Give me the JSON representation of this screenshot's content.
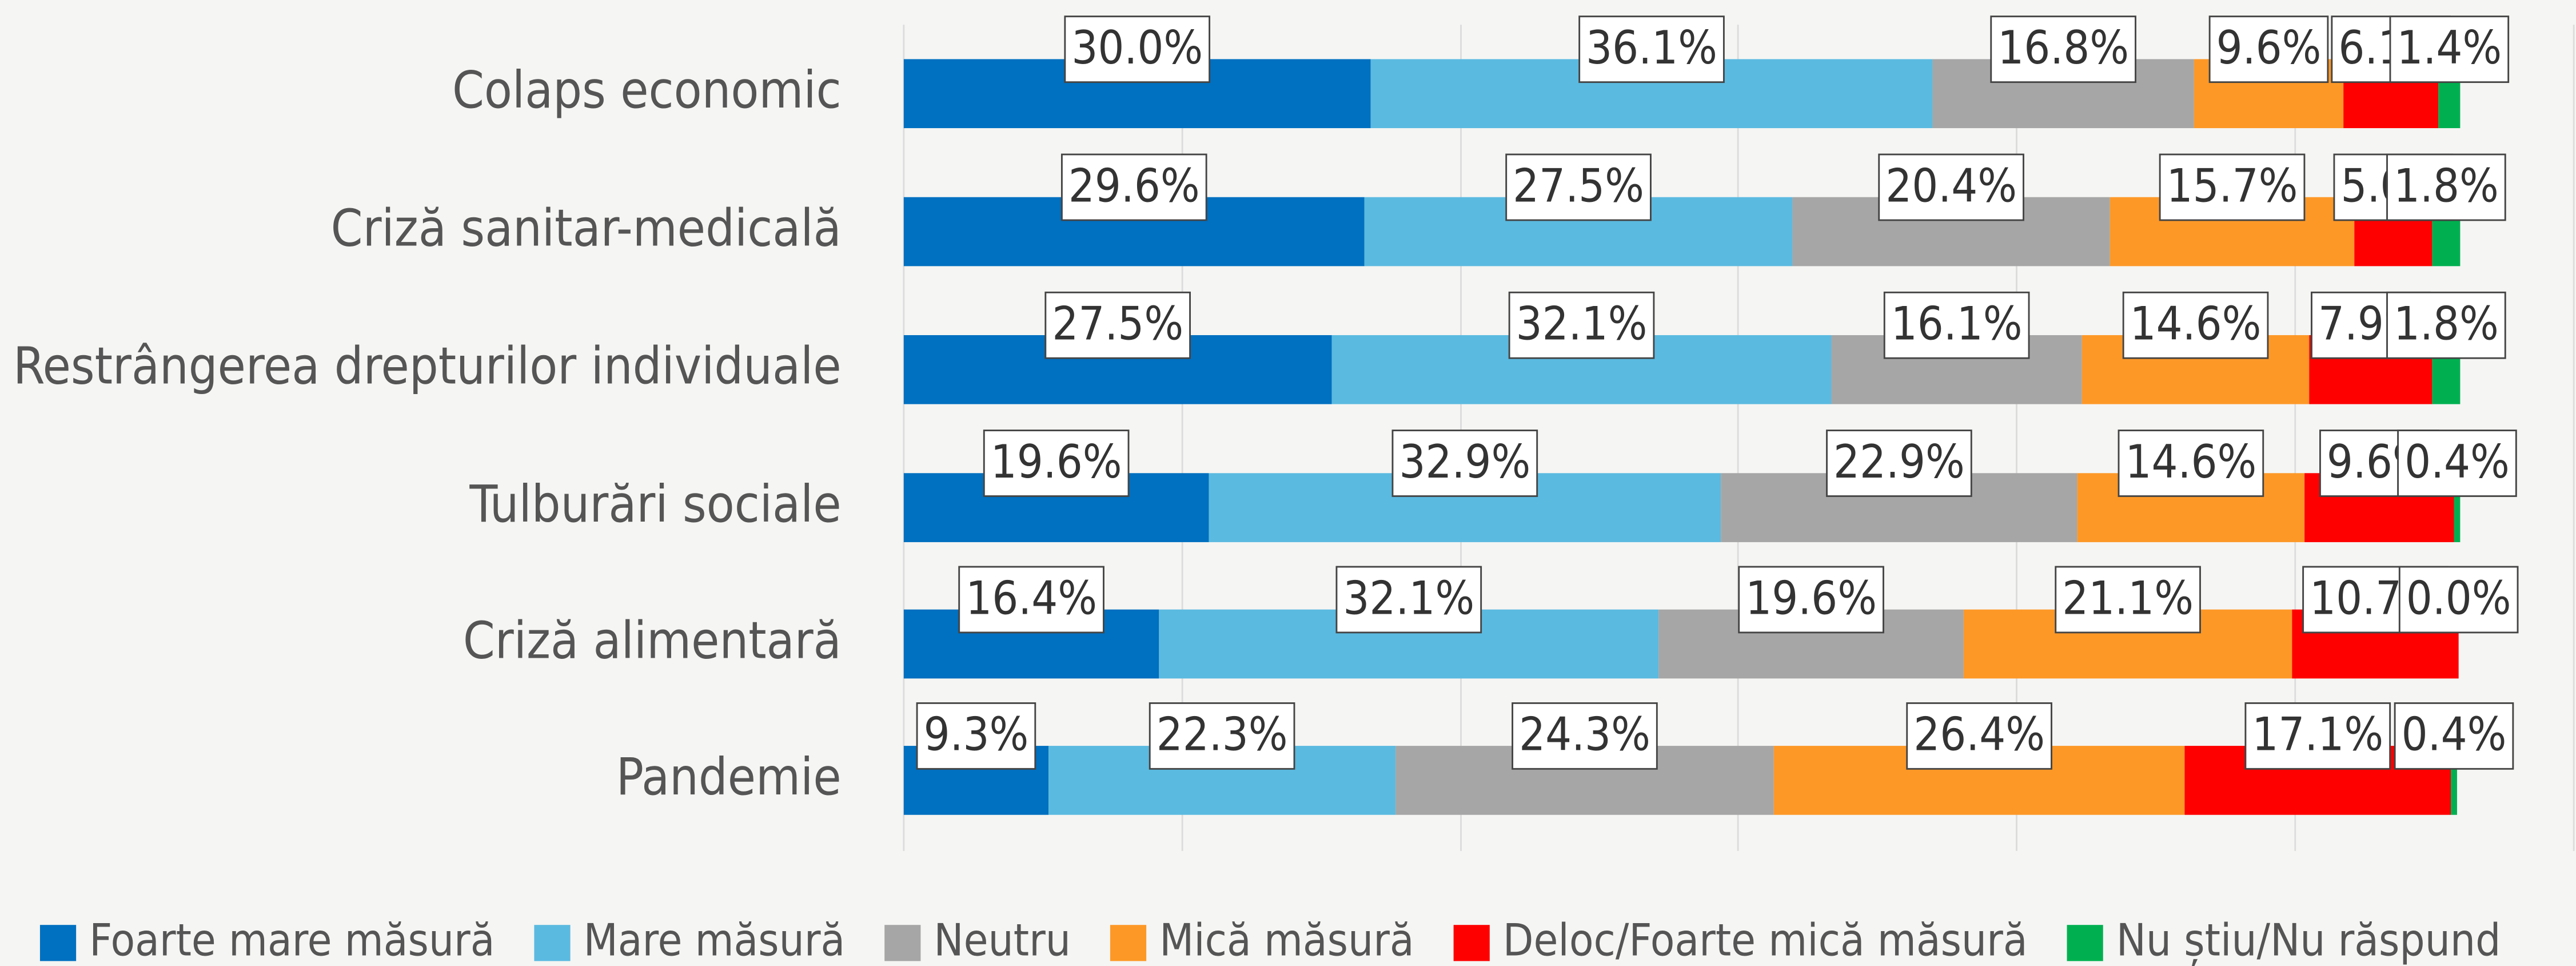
{
  "chart_data": {
    "type": "stacked-bar-horizontal",
    "categories": [
      "Colaps economic",
      "Criză sanitar-medicală",
      "Restrângerea drepturilor individuale",
      "Tulburări sociale",
      "Criză alimentară",
      "Pandemie"
    ],
    "series": [
      {
        "name": "Foarte mare măsură",
        "color": "#0070c0",
        "values": [
          30.0,
          29.6,
          27.5,
          19.6,
          16.4,
          9.3
        ],
        "value_labels": [
          "30.0%",
          "29.6%",
          "27.5%",
          "19.6%",
          "16.4%",
          "9.3%"
        ]
      },
      {
        "name": "Mare măsură",
        "color": "#5bbae0",
        "values": [
          36.1,
          27.5,
          32.1,
          32.9,
          32.1,
          22.3
        ],
        "value_labels": [
          "36.1%",
          "27.5%",
          "32.1%",
          "32.9%",
          "32.1%",
          "22.3%"
        ]
      },
      {
        "name": "Neutru",
        "color": "#a6a6a6",
        "values": [
          16.8,
          20.4,
          16.1,
          22.9,
          19.6,
          24.3
        ],
        "value_labels": [
          "16.8%",
          "20.4%",
          "16.1%",
          "22.9%",
          "19.6%",
          "24.3%"
        ]
      },
      {
        "name": "Mică măsură",
        "color": "#fd9827",
        "values": [
          9.6,
          15.7,
          14.6,
          14.6,
          21.1,
          26.4
        ],
        "value_labels": [
          "9.6%",
          "15.7%",
          "14.6%",
          "14.6%",
          "21.1%",
          "26.4%"
        ]
      },
      {
        "name": "Deloc/Foarte mică măsură",
        "color": "#fe0000",
        "values": [
          6.1,
          5.0,
          7.9,
          9.6,
          10.7,
          17.1
        ],
        "value_labels": [
          "6.1%",
          "5.0%",
          "7.9%",
          "9.6%",
          "10.7%",
          "17.1%"
        ]
      },
      {
        "name": "Nu știu/Nu răspund",
        "color": "#00b050",
        "values": [
          1.4,
          1.8,
          1.8,
          0.4,
          0.0,
          0.4
        ],
        "value_labels": [
          "1.4%",
          "1.8%",
          "1.8%",
          "0.4%",
          "0.0%",
          "0.4%"
        ]
      }
    ],
    "xlim": [
      0,
      107.3
    ],
    "xticks": [
      0,
      17.9,
      35.8,
      53.6,
      71.5,
      89.4,
      107.3
    ],
    "grid": true,
    "legend": "bottom"
  }
}
